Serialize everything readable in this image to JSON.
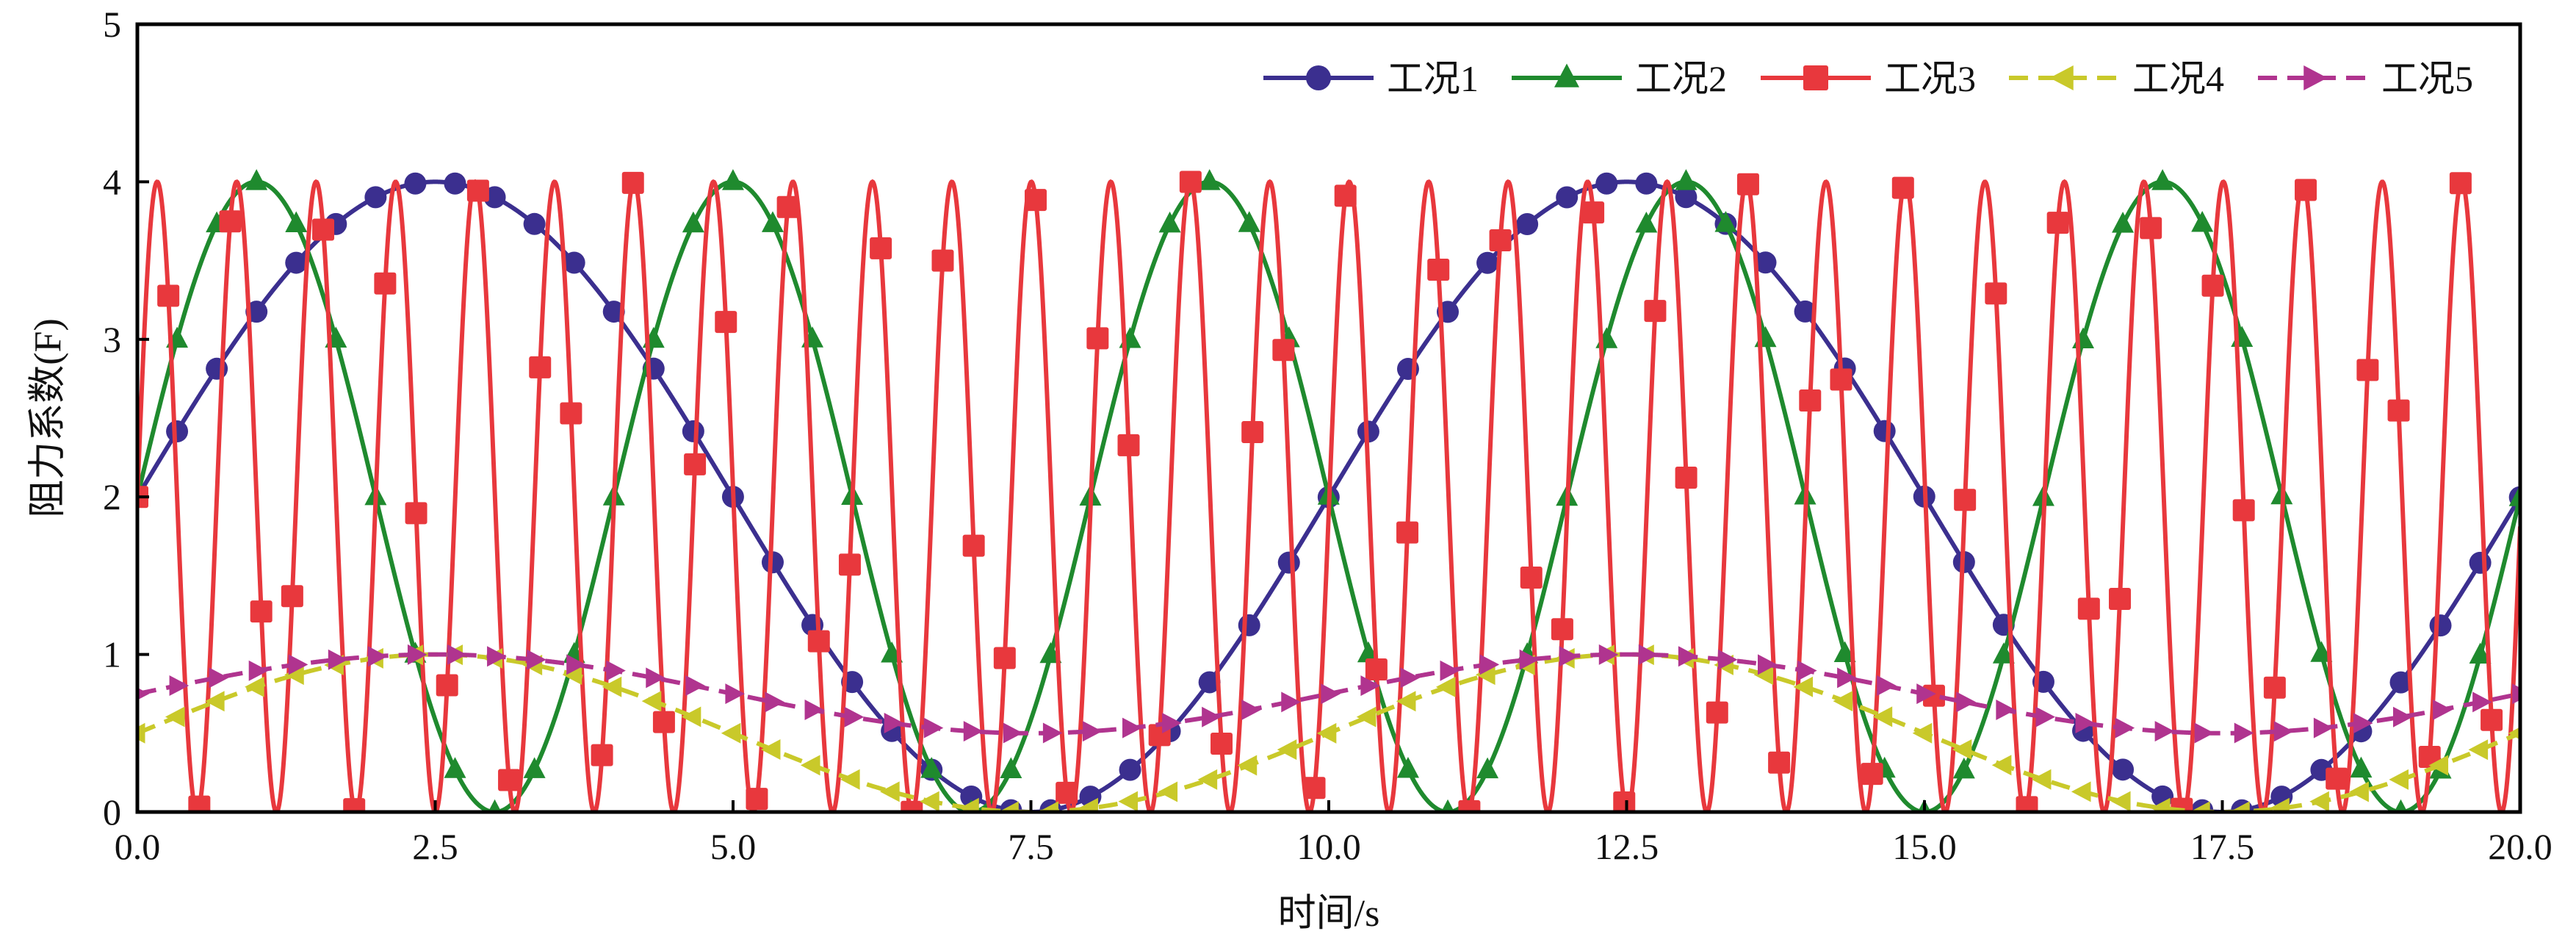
{
  "chart_data": {
    "type": "line",
    "xlabel": "时间/s",
    "ylabel": "阻力系数(F)",
    "xlim": [
      0,
      20
    ],
    "ylim": [
      0,
      5
    ],
    "xticks": [
      "0.0",
      "2.5",
      "5.0",
      "7.5",
      "10.0",
      "12.5",
      "15.0",
      "17.5",
      "20.0"
    ],
    "xtick_values": [
      0,
      2.5,
      5,
      7.5,
      10,
      12.5,
      15,
      17.5,
      20
    ],
    "yticks": [
      "0",
      "1",
      "2",
      "3",
      "4",
      "5"
    ],
    "ytick_values": [
      0,
      1,
      2,
      3,
      4,
      5
    ],
    "grid": false,
    "legend_position": "top-right",
    "series": [
      {
        "name": "工况1",
        "color": "#3b2f8f",
        "line_style": "solid",
        "marker": "circle",
        "function": "2 + 2*sin(2*pi*t/10)",
        "x": [
          0,
          1.25,
          2.5,
          3.75,
          5,
          6.25,
          7.5,
          8.75,
          10,
          11.25,
          12.5,
          13.75,
          15,
          16.25,
          17.5,
          18.75,
          20
        ],
        "y": [
          2,
          3.41,
          4,
          3.41,
          2,
          0.59,
          0,
          0.59,
          2,
          3.41,
          4,
          3.41,
          2,
          0.59,
          0,
          0.59,
          2
        ]
      },
      {
        "name": "工况2",
        "color": "#1f8a2e",
        "line_style": "solid",
        "marker": "triangle-up",
        "function": "2 + 2*sin(2*pi*t/4)",
        "x": [
          0,
          0.5,
          1,
          1.5,
          2,
          2.5,
          3,
          3.5,
          4
        ],
        "y": [
          2,
          3.41,
          4,
          3.41,
          2,
          0.59,
          0,
          0.59,
          2
        ]
      },
      {
        "name": "工况3",
        "color": "#e8383d",
        "line_style": "solid",
        "marker": "square",
        "function": "2 + 2*sin(2*pi*t/0.667)",
        "x": [
          0,
          0.167,
          0.333,
          0.5,
          0.667
        ],
        "y": [
          2,
          4,
          2,
          0,
          2
        ]
      },
      {
        "name": "工况4",
        "color": "#c9c92a",
        "line_style": "dashed",
        "marker": "triangle-left",
        "function": "0.5 + 0.5*sin(2*pi*t/10)",
        "x": [
          0,
          2.5,
          5,
          7.5,
          10,
          12.5,
          15,
          17.5,
          20
        ],
        "y": [
          0.5,
          1,
          0.5,
          0,
          0.5,
          1,
          0.5,
          0,
          0.5
        ]
      },
      {
        "name": "工况5",
        "color": "#b0348f",
        "line_style": "dashed",
        "marker": "triangle-right",
        "function": "0.75 + 0.25*sin(2*pi*t/10)",
        "x": [
          0,
          2.5,
          5,
          7.5,
          10,
          12.5,
          15,
          17.5,
          20
        ],
        "y": [
          0.75,
          1,
          0.75,
          0.5,
          0.75,
          1,
          0.75,
          0.5,
          0.75
        ]
      }
    ]
  }
}
